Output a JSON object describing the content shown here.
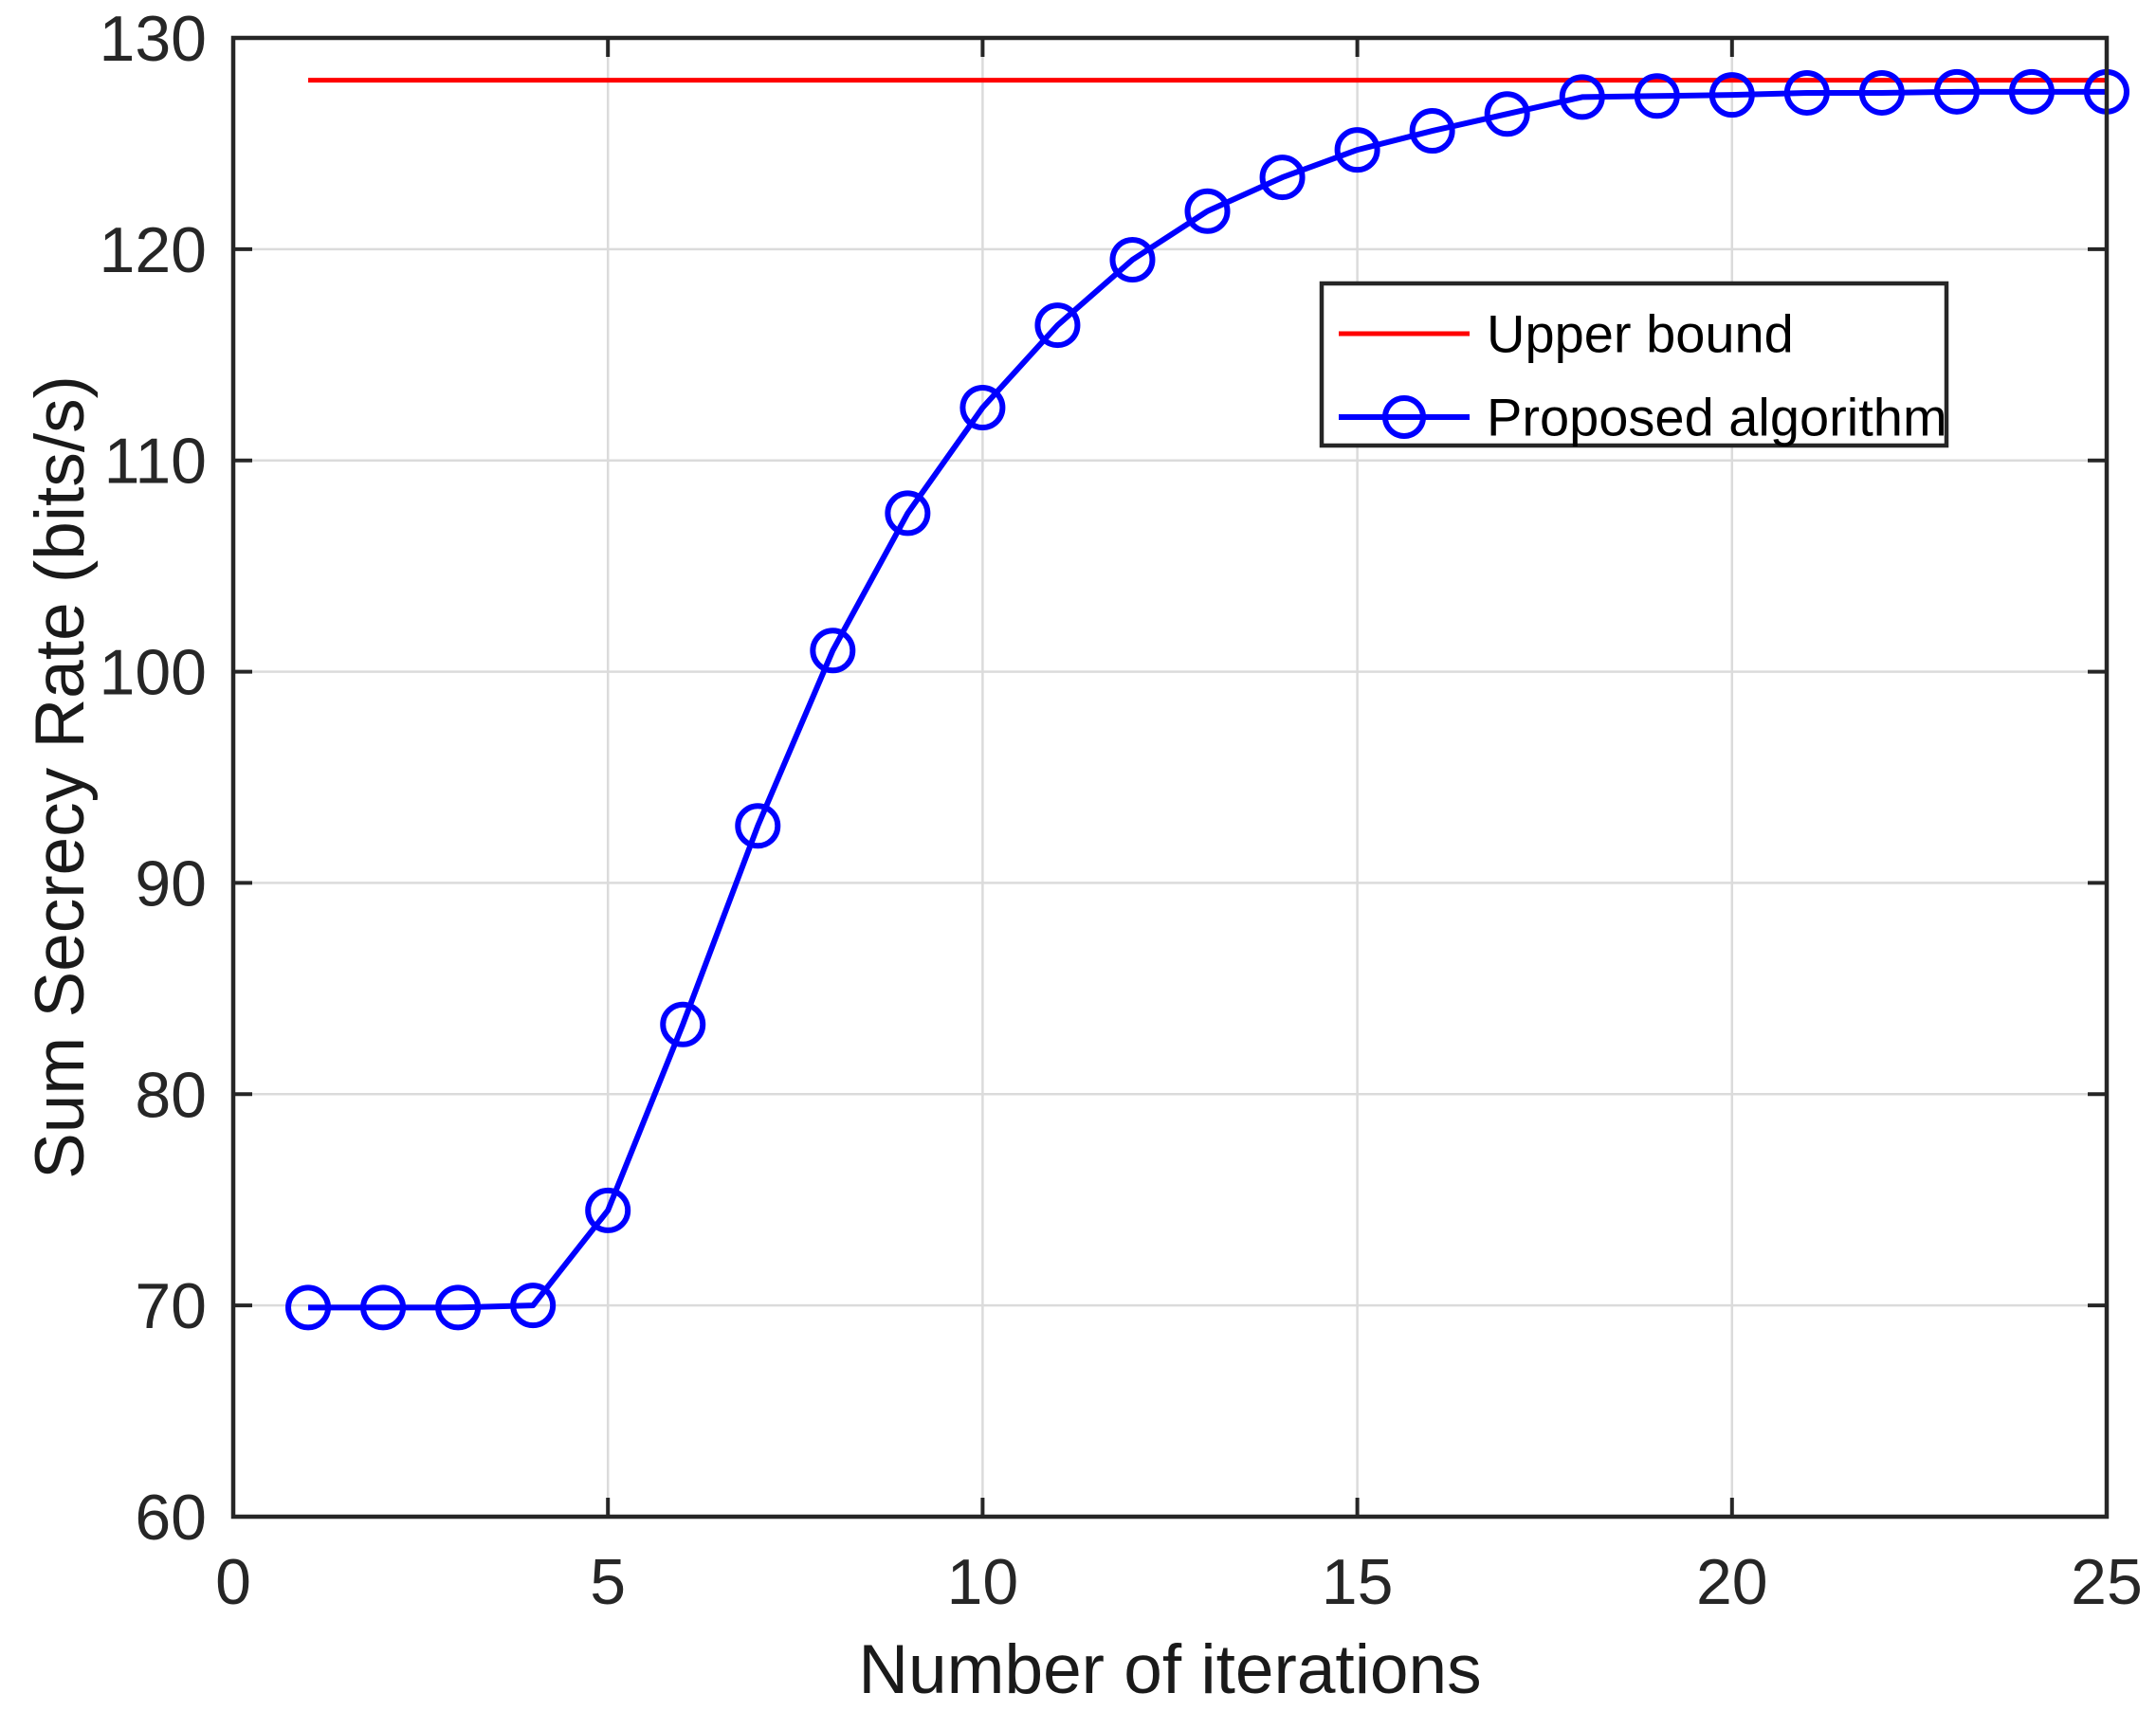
{
  "figure": {
    "background_color": "#ffffff",
    "axis_color": "#262626",
    "grid_color": "#dbdbdb",
    "label_color": "#1a1a1a"
  },
  "chart_data": {
    "type": "line",
    "title": "",
    "xlabel": "Number of iterations",
    "ylabel": "Sum Secrecy Rate (bits/s)",
    "xlim": [
      0,
      25
    ],
    "ylim": [
      60,
      130
    ],
    "x_ticks": [
      0,
      5,
      10,
      15,
      20,
      25
    ],
    "y_ticks": [
      60,
      70,
      80,
      90,
      100,
      110,
      120,
      130
    ],
    "grid": true,
    "legend_position": "upper-right-inside",
    "series": [
      {
        "name": "Upper bound",
        "color": "#ff0000",
        "marker": "none",
        "line_width": 5,
        "x": [
          1,
          25
        ],
        "y": [
          128,
          128
        ]
      },
      {
        "name": "Proposed algorithm",
        "color": "#0000ff",
        "marker": "circle",
        "line_width": 6,
        "x": [
          1,
          2,
          3,
          4,
          5,
          6,
          7,
          8,
          9,
          10,
          11,
          12,
          13,
          14,
          15,
          16,
          17,
          18,
          19,
          20,
          21,
          22,
          23,
          24,
          25
        ],
        "y": [
          69.9,
          69.9,
          69.9,
          70,
          74.5,
          83.3,
          92.7,
          101,
          107.5,
          112.5,
          116.4,
          119.5,
          121.8,
          123.4,
          124.7,
          125.6,
          126.4,
          127.2,
          127.25,
          127.3,
          127.4,
          127.4,
          127.45,
          127.45,
          127.45
        ]
      }
    ]
  }
}
